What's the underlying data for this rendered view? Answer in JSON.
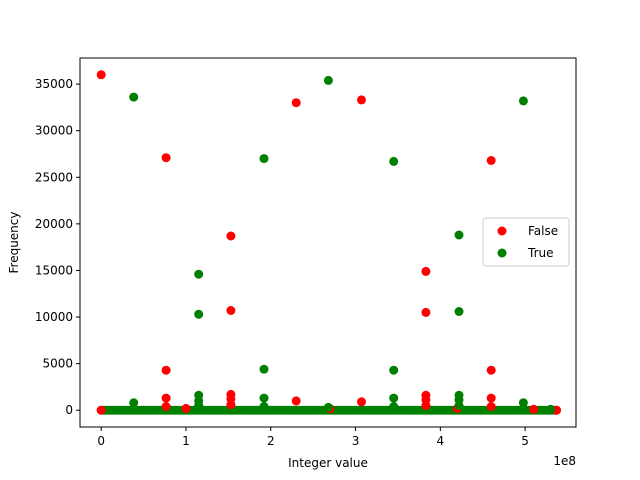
{
  "chart_data": {
    "type": "scatter",
    "title": "",
    "xlabel": "Integer value",
    "ylabel": "Frequency",
    "x_offset_label": "1e8",
    "xlim": [
      -25000000.0,
      560000000.0
    ],
    "ylim": [
      -1800,
      37800
    ],
    "x_ticks": [
      0,
      100000000.0,
      200000000.0,
      300000000.0,
      400000000.0,
      500000000.0
    ],
    "x_tick_labels": [
      "0",
      "1",
      "2",
      "3",
      "4",
      "5"
    ],
    "y_ticks": [
      0,
      5000,
      10000,
      15000,
      20000,
      25000,
      30000,
      35000
    ],
    "y_tick_labels": [
      "0",
      "5000",
      "10000",
      "15000",
      "20000",
      "25000",
      "30000",
      "35000"
    ],
    "grid": false,
    "legend_position": "center-right",
    "x_range_of_baseline_points": [
      0,
      537000000.0
    ],
    "series": [
      {
        "name": "False",
        "color": "#ff0000",
        "points": [
          [
            0,
            36000
          ],
          [
            76600000.0,
            27100
          ],
          [
            76600000.0,
            4300
          ],
          [
            76600000.0,
            1300
          ],
          [
            76600000.0,
            400
          ],
          [
            153000000.0,
            18700
          ],
          [
            153000000.0,
            10700
          ],
          [
            153000000.0,
            1700
          ],
          [
            153000000.0,
            1200
          ],
          [
            153000000.0,
            600
          ],
          [
            230000000.0,
            33000
          ],
          [
            230000000.0,
            1000
          ],
          [
            307000000.0,
            33300
          ],
          [
            307000000.0,
            900
          ],
          [
            383000000.0,
            14900
          ],
          [
            383000000.0,
            10500
          ],
          [
            383000000.0,
            1600
          ],
          [
            383000000.0,
            1100
          ],
          [
            383000000.0,
            500
          ],
          [
            460000000.0,
            26800
          ],
          [
            460000000.0,
            4300
          ],
          [
            460000000.0,
            1300
          ],
          [
            460000000.0,
            400
          ],
          [
            537000000.0,
            0
          ],
          [
            100000000.0,
            200
          ],
          [
            270000000.0,
            150
          ],
          [
            420000000.0,
            200
          ],
          [
            510000000.0,
            100
          ]
        ]
      },
      {
        "name": "True",
        "color": "#008000",
        "points": [
          [
            38300000.0,
            33600
          ],
          [
            38300000.0,
            800
          ],
          [
            115000000.0,
            14600
          ],
          [
            115000000.0,
            10300
          ],
          [
            115000000.0,
            1600
          ],
          [
            115000000.0,
            1000
          ],
          [
            115000000.0,
            500
          ],
          [
            192000000.0,
            27000
          ],
          [
            192000000.0,
            4400
          ],
          [
            192000000.0,
            1300
          ],
          [
            192000000.0,
            400
          ],
          [
            268000000.0,
            35400
          ],
          [
            268000000.0,
            300
          ],
          [
            345000000.0,
            26700
          ],
          [
            345000000.0,
            4300
          ],
          [
            345000000.0,
            1300
          ],
          [
            345000000.0,
            400
          ],
          [
            422000000.0,
            18800
          ],
          [
            422000000.0,
            10600
          ],
          [
            422000000.0,
            1600
          ],
          [
            422000000.0,
            1100
          ],
          [
            422000000.0,
            500
          ],
          [
            498000000.0,
            33200
          ],
          [
            498000000.0,
            800
          ],
          [
            530000000.0,
            100
          ]
        ]
      }
    ]
  }
}
